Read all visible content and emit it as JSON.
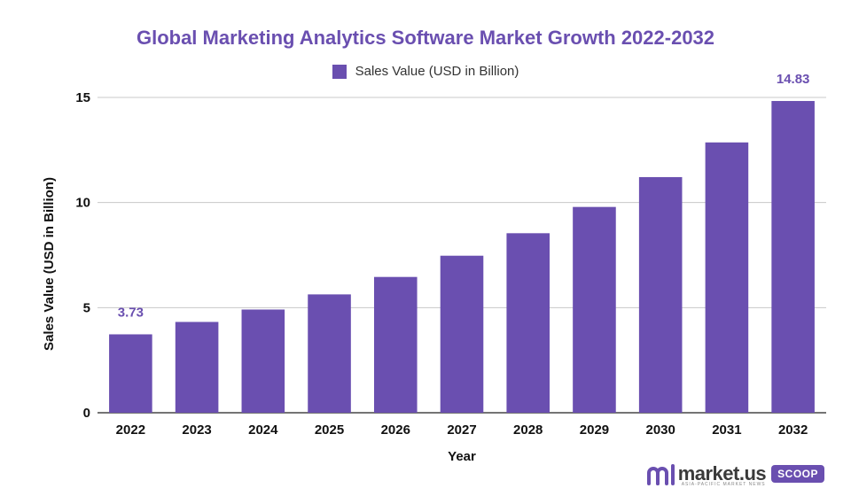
{
  "colors": {
    "bar": "#6a4fb0",
    "title": "#6a4fb0",
    "grid": "#c8c8c8",
    "axis": "#222222",
    "data_label": "#6a4fb0"
  },
  "chart_data": {
    "type": "bar",
    "title": "Global Marketing Analytics Software Market Growth 2022-2032",
    "legend": "top-center",
    "xlabel": "Year",
    "ylabel": "Sales Value (USD in Billion)",
    "ylim": [
      0,
      15
    ],
    "yticks": [
      0,
      5,
      10,
      15
    ],
    "grid": true,
    "categories": [
      "2022",
      "2023",
      "2024",
      "2025",
      "2026",
      "2027",
      "2028",
      "2029",
      "2030",
      "2031",
      "2032"
    ],
    "series": [
      {
        "name": "Sales Value (USD in Billion)",
        "values": [
          3.73,
          4.32,
          4.91,
          5.63,
          6.46,
          7.47,
          8.54,
          9.79,
          11.21,
          12.86,
          14.83
        ]
      }
    ],
    "data_labels": [
      {
        "index": 0,
        "text": "3.73"
      },
      {
        "index": 10,
        "text": "14.83"
      }
    ]
  },
  "logo": {
    "text": "market.us",
    "badge": "SCOOP",
    "sub": "ASIA-PACIFIC MARKET NEWS"
  }
}
